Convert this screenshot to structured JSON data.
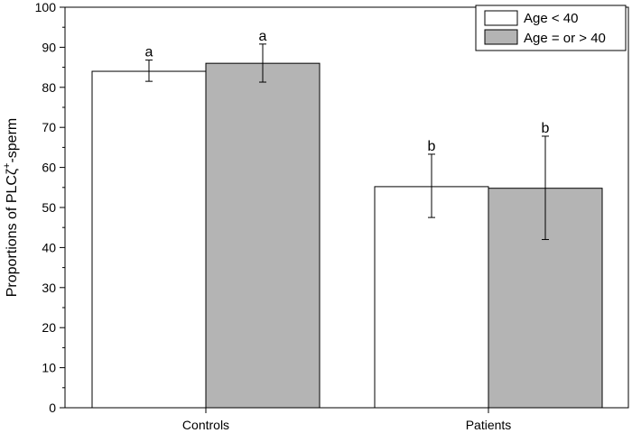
{
  "chart_data": {
    "type": "bar",
    "categories": [
      "Controls",
      "Patients"
    ],
    "series": [
      {
        "name": "Age < 40",
        "color": "#ffffff",
        "values": [
          84,
          55.2
        ],
        "error_low": [
          81.5,
          47.5
        ],
        "error_high": [
          86.8,
          63.3
        ],
        "labels": [
          "a",
          "b"
        ]
      },
      {
        "name": "Age = or > 40",
        "color": "#b4b4b4",
        "values": [
          86,
          54.8
        ],
        "error_low": [
          81.3,
          42.0
        ],
        "error_high": [
          90.8,
          67.8
        ],
        "labels": [
          "a",
          "b"
        ]
      }
    ],
    "xlabel": "",
    "ylabel": "Proportions of PLCζ+-sperm",
    "ylabel_parts": {
      "main": "Proportions of PLC",
      "zeta": "ζ",
      "sup": "+",
      "tail": "-sperm"
    },
    "ylim": [
      0,
      100
    ],
    "yticks": [
      0,
      10,
      20,
      30,
      40,
      50,
      60,
      70,
      80,
      90,
      100
    ],
    "legend_position": "top-right",
    "grid": false
  }
}
